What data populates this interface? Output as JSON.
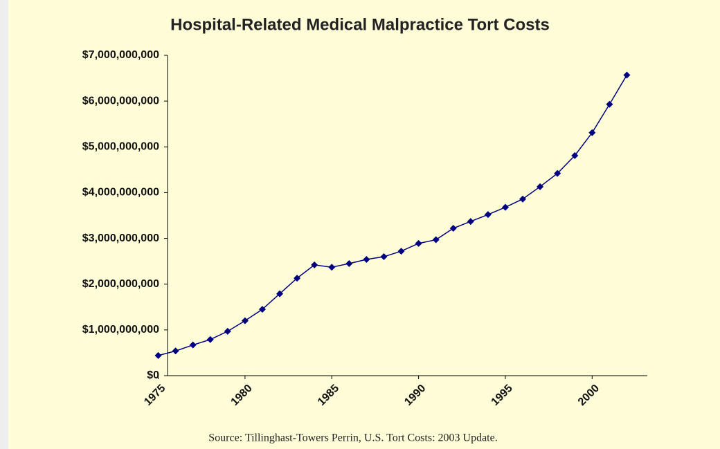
{
  "chart_data": {
    "type": "line",
    "title": "Hospital-Related Medical Malpractice Tort Costs",
    "source": "Source:  Tillinghast-Towers Perrin, U.S. Tort Costs:  2003 Update.",
    "x": [
      1975,
      1976,
      1977,
      1978,
      1979,
      1980,
      1981,
      1982,
      1983,
      1984,
      1985,
      1986,
      1987,
      1988,
      1989,
      1990,
      1991,
      1992,
      1993,
      1994,
      1995,
      1996,
      1997,
      1998,
      1999,
      2000,
      2001,
      2002
    ],
    "series": [
      {
        "name": "Hospital-Related Medical Malpractice Tort Costs",
        "color": "#000080",
        "values": [
          440000000,
          540000000,
          670000000,
          790000000,
          970000000,
          1200000000,
          1450000000,
          1790000000,
          2130000000,
          2420000000,
          2370000000,
          2450000000,
          2540000000,
          2600000000,
          2720000000,
          2890000000,
          2970000000,
          3220000000,
          3370000000,
          3520000000,
          3680000000,
          3860000000,
          4130000000,
          4420000000,
          4810000000,
          5310000000,
          5930000000,
          6570000000
        ]
      }
    ],
    "xlim": [
      1974.5,
      2002.5
    ],
    "xticks": [
      1975,
      1980,
      1985,
      1990,
      1995,
      2000
    ],
    "ylim": [
      0,
      7000000000
    ],
    "yticks": [
      {
        "value": 0,
        "label": "$0"
      },
      {
        "value": 1000000000,
        "label": "$1,000,000,000"
      },
      {
        "value": 2000000000,
        "label": "$2,000,000,000"
      },
      {
        "value": 3000000000,
        "label": "$3,000,000,000"
      },
      {
        "value": 4000000000,
        "label": "$4,000,000,000"
      },
      {
        "value": 5000000000,
        "label": "$5,000,000,000"
      },
      {
        "value": 6000000000,
        "label": "$6,000,000,000"
      },
      {
        "value": 7000000000,
        "label": "$7,000,000,000"
      }
    ],
    "grid": false
  }
}
